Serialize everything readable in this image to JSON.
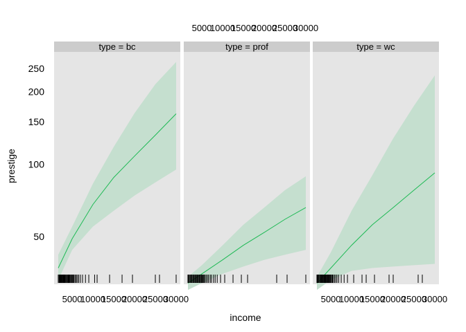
{
  "chart_data": {
    "type": "line",
    "layout": "facet-columns",
    "ylabel": "prestige",
    "xlabel": "income",
    "y_scale": "log",
    "y_ticks": [
      50,
      100,
      150,
      200,
      250
    ],
    "x_ticks": [
      5000,
      10000,
      15000,
      20000,
      25000,
      30000
    ],
    "colors": {
      "line": "#1db954",
      "band": "#c5dfcf",
      "panel": "#e5e5e5",
      "strip": "#cccccc"
    },
    "panels": [
      {
        "strip": "type = bc",
        "xlim": [
          1656,
          30000
        ],
        "fit": [
          [
            1656,
            37
          ],
          [
            5000,
            49
          ],
          [
            10000,
            68
          ],
          [
            15000,
            88
          ],
          [
            20000,
            108
          ],
          [
            25000,
            132
          ],
          [
            30000,
            162
          ]
        ],
        "lower": [
          [
            1656,
            33
          ],
          [
            5000,
            44
          ],
          [
            10000,
            55
          ],
          [
            15000,
            64
          ],
          [
            20000,
            74
          ],
          [
            25000,
            84
          ],
          [
            30000,
            95
          ]
        ],
        "upper": [
          [
            1656,
            42
          ],
          [
            5000,
            55
          ],
          [
            10000,
            83
          ],
          [
            15000,
            118
          ],
          [
            20000,
            163
          ],
          [
            25000,
            215
          ],
          [
            30000,
            266
          ]
        ],
        "rug": [
          1656,
          1700,
          1890,
          2000,
          2150,
          2280,
          2370,
          2448,
          2594,
          2650,
          2800,
          2901,
          3000,
          3100,
          3205,
          3300,
          3485,
          3593,
          3700,
          3910,
          4000,
          4075,
          4224,
          4330,
          4500,
          4700,
          4800,
          5000,
          5180,
          5300,
          5500,
          5800,
          6000,
          6300,
          6600,
          7000,
          7500,
          8200,
          9000,
          10400,
          11000,
          14000,
          17000,
          19500,
          25000,
          26000,
          30000
        ]
      },
      {
        "strip": "type = prof",
        "xlim": [
          1656,
          30000
        ],
        "fit": [
          [
            1656,
            32
          ],
          [
            5000,
            35
          ],
          [
            10000,
            40
          ],
          [
            15000,
            46
          ],
          [
            20000,
            52
          ],
          [
            25000,
            59
          ],
          [
            30000,
            66
          ]
        ],
        "lower": [
          [
            1656,
            30
          ],
          [
            5000,
            32
          ],
          [
            10000,
            35
          ],
          [
            15000,
            37.5
          ],
          [
            20000,
            40
          ],
          [
            25000,
            42
          ],
          [
            30000,
            44
          ]
        ],
        "upper": [
          [
            1656,
            34
          ],
          [
            5000,
            38
          ],
          [
            10000,
            46
          ],
          [
            15000,
            56
          ],
          [
            20000,
            66
          ],
          [
            25000,
            78
          ],
          [
            30000,
            89
          ]
        ],
        "rug": [
          1656,
          1800,
          2000,
          2200,
          2400,
          2600,
          2800,
          3000,
          3100,
          3300,
          3500,
          3600,
          3800,
          3900,
          4100,
          4200,
          4400,
          4600,
          4700,
          4900,
          5000,
          5200,
          5300,
          5500,
          5700,
          6000,
          6300,
          6600,
          7000,
          7300,
          7800,
          8200,
          8700,
          9500,
          10500,
          12500,
          14500,
          16000,
          23000,
          25500,
          30000
        ]
      },
      {
        "strip": "type = wc",
        "xlim": [
          1656,
          30000
        ],
        "fit": [
          [
            1656,
            32
          ],
          [
            5000,
            37
          ],
          [
            10000,
            46
          ],
          [
            15000,
            56
          ],
          [
            20000,
            66
          ],
          [
            25000,
            78
          ],
          [
            30000,
            92
          ]
        ],
        "lower": [
          [
            1656,
            30
          ],
          [
            5000,
            33
          ],
          [
            10000,
            36
          ],
          [
            15000,
            37
          ],
          [
            20000,
            37.5
          ],
          [
            25000,
            38
          ],
          [
            30000,
            38.5
          ]
        ],
        "upper": [
          [
            1656,
            34
          ],
          [
            5000,
            43
          ],
          [
            10000,
            64
          ],
          [
            15000,
            90
          ],
          [
            20000,
            128
          ],
          [
            25000,
            175
          ],
          [
            30000,
            234
          ]
        ],
        "rug": [
          1656,
          1800,
          1950,
          2100,
          2300,
          2450,
          2600,
          2750,
          2900,
          3050,
          3200,
          3350,
          3500,
          3650,
          3800,
          3950,
          4100,
          4250,
          4400,
          4550,
          4700,
          4850,
          5000,
          5200,
          5400,
          5600,
          5900,
          6200,
          6500,
          6900,
          7500,
          8200,
          9000,
          10500,
          12500,
          13500,
          15500,
          19000,
          20000,
          26000,
          27000
        ]
      }
    ]
  }
}
